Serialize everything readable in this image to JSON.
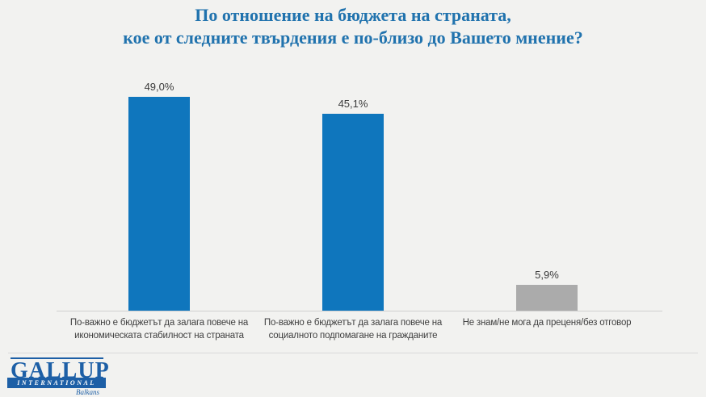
{
  "title": {
    "line1": "По отношение на бюджета на страната,",
    "line2": "кое от следните твърдения е по-близо до Вашето мнение?"
  },
  "chart_data": {
    "type": "bar",
    "categories": [
      "По-важно е бюджетът да залага повече на икономическата стабилност на страната",
      "По-важно е бюджетът да залага повече на социалното подпомагане на гражданите",
      "Не знам/не мога да преценя/без отговор"
    ],
    "values": [
      49.0,
      45.1,
      5.9
    ],
    "value_labels": [
      "49,0%",
      "45,1%",
      "5,9%"
    ],
    "bar_colors": [
      "#0f76bd",
      "#0f76bd",
      "#ababab"
    ],
    "ylim": [
      0,
      55
    ],
    "grid": false,
    "legend": false,
    "title": "По отношение на бюджета на страната, кое от следните твърдения е по-близо до Вашето мнение?",
    "xlabel": "",
    "ylabel": ""
  },
  "logo": {
    "name": "GALLUP",
    "subtitle": "INTERNATIONAL",
    "region": "Balkans"
  },
  "colors": {
    "background": "#f2f2f0",
    "title_text": "#2173ae",
    "bar_blue": "#0f76bd",
    "bar_gray": "#ababab",
    "axis_line": "#d0d0d0",
    "label_text": "#3f3f3f",
    "logo_blue": "#1d5fa6"
  }
}
